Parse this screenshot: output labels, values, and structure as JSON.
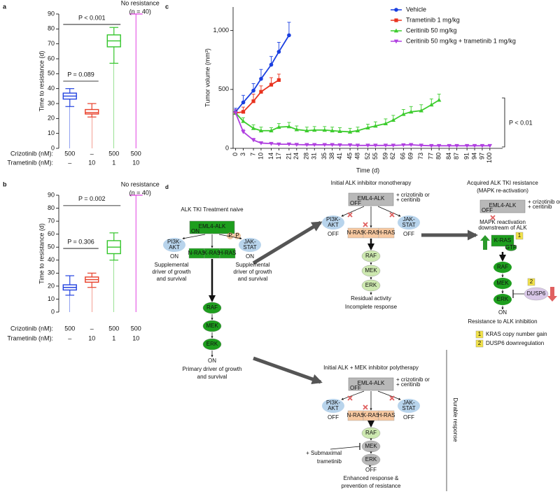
{
  "chart_data": [
    {
      "type": "box",
      "panel_label": "a",
      "y_label": "Time to resistance (d)",
      "ylim": [
        0,
        90
      ],
      "yticks": [
        0,
        10,
        20,
        30,
        40,
        50,
        60,
        70,
        80,
        90
      ],
      "category_rows": [
        {
          "label": "Crizotinib (nM):",
          "values": [
            "500",
            "–",
            "500",
            "500"
          ]
        },
        {
          "label": "Trametinib (nM):",
          "values": [
            "–",
            "10",
            "1",
            "10"
          ]
        }
      ],
      "groups": [
        {
          "color": "#2343e0",
          "min": 28,
          "q1": 33,
          "median": 35,
          "q3": 37,
          "max": 40
        },
        {
          "color": "#e8402a",
          "min": 21,
          "q1": 23,
          "median": 24,
          "q3": 26,
          "max": 30
        },
        {
          "color": "#33c52a",
          "min": 57,
          "q1": 68,
          "median": 72,
          "q3": 76,
          "max": 81
        },
        {
          "color": "#e040e0",
          "value": 90
        }
      ],
      "annotations": [
        {
          "text": "P < 0.001",
          "from": 0,
          "to": 2,
          "y": 83
        },
        {
          "text": "P = 0.089",
          "from": 0,
          "to": 1,
          "y": 45
        }
      ],
      "no_resistance_label": [
        "No resistance",
        "(n = 40)"
      ]
    },
    {
      "type": "box",
      "panel_label": "b",
      "y_label": "Time to resistance (d)",
      "ylim": [
        0,
        90
      ],
      "yticks": [
        0,
        10,
        20,
        30,
        40,
        50,
        60,
        70,
        80,
        90
      ],
      "category_rows": [
        {
          "label": "Crizotinib (nM):",
          "values": [
            "500",
            "–",
            "500",
            "500"
          ]
        },
        {
          "label": "Trametinib (nM):",
          "values": [
            "–",
            "10",
            "1",
            "10"
          ]
        }
      ],
      "groups": [
        {
          "color": "#2343e0",
          "min": 13,
          "q1": 17,
          "median": 19,
          "q3": 21,
          "max": 28
        },
        {
          "color": "#e8402a",
          "min": 19,
          "q1": 23,
          "median": 25,
          "q3": 27,
          "max": 30
        },
        {
          "color": "#33c52a",
          "min": 40,
          "q1": 45,
          "median": 50,
          "q3": 55,
          "max": 61
        },
        {
          "color": "#e040e0",
          "value": 90
        }
      ],
      "annotations": [
        {
          "text": "P = 0.002",
          "from": 0,
          "to": 2,
          "y": 82
        },
        {
          "text": "P = 0.306",
          "from": 0,
          "to": 1,
          "y": 49
        }
      ],
      "no_resistance_label": [
        "No resistance",
        "(n = 40)"
      ]
    },
    {
      "type": "line",
      "panel_label": "c",
      "x_label": "Time (d)",
      "y_label": "Tumor volume (mm³)",
      "xlim": [
        -1,
        105
      ],
      "xticks": [
        0,
        3,
        7,
        10,
        14,
        17,
        21,
        24,
        28,
        31,
        35,
        38,
        41,
        45,
        48,
        52,
        55,
        59,
        62,
        66,
        69,
        73,
        77,
        80,
        84,
        87,
        91,
        94,
        97,
        100
      ],
      "ylim": [
        0,
        1200
      ],
      "yticks": [
        0,
        500,
        {
          "value": 1000,
          "label": "1,000"
        }
      ],
      "series": [
        {
          "name": "Vehicle",
          "color": "#1a3fe0",
          "marker": "circle",
          "x": [
            0,
            3,
            7,
            10,
            14,
            17,
            21
          ],
          "values": [
            310,
            390,
            490,
            590,
            710,
            820,
            960
          ],
          "errors": [
            30,
            60,
            60,
            80,
            70,
            80,
            110
          ]
        },
        {
          "name": "Trametinib 1 mg/kg",
          "color": "#e8321e",
          "marker": "square",
          "x": [
            0,
            3,
            7,
            10,
            14,
            17
          ],
          "values": [
            300,
            310,
            400,
            480,
            540,
            580
          ],
          "errors": [
            30,
            40,
            60,
            50,
            60,
            50
          ]
        },
        {
          "name": "Ceritinib 50 mg/kg",
          "color": "#3dcc2e",
          "marker": "triangle-up",
          "x": [
            0,
            3,
            7,
            10,
            14,
            17,
            21,
            24,
            28,
            31,
            35,
            38,
            41,
            45,
            48,
            52,
            55,
            59,
            62,
            66,
            69,
            73,
            77,
            80
          ],
          "values": [
            300,
            230,
            170,
            150,
            150,
            180,
            185,
            160,
            150,
            155,
            155,
            150,
            145,
            140,
            150,
            175,
            190,
            210,
            240,
            290,
            310,
            320,
            370,
            410
          ],
          "errors": [
            30,
            30,
            30,
            30,
            25,
            30,
            35,
            30,
            30,
            30,
            30,
            30,
            30,
            30,
            30,
            30,
            35,
            40,
            40,
            40,
            45,
            50,
            50,
            50
          ]
        },
        {
          "name": "Ceritinib 50 mg/kg + trametinib 1 mg/kg",
          "color": "#b040e0",
          "marker": "triangle-down",
          "x": [
            0,
            3,
            7,
            10,
            14,
            17,
            21,
            24,
            28,
            31,
            35,
            38,
            41,
            45,
            48,
            52,
            55,
            59,
            62,
            66,
            69,
            73,
            77,
            80,
            84,
            87,
            91,
            94,
            97,
            100
          ],
          "values": [
            300,
            140,
            70,
            45,
            40,
            35,
            35,
            32,
            30,
            30,
            30,
            30,
            28,
            28,
            25,
            25,
            25,
            25,
            25,
            28,
            30,
            25,
            22,
            22,
            22,
            22,
            22,
            22,
            22,
            22
          ],
          "errors": [
            30,
            20,
            15,
            10,
            10,
            8,
            8,
            8,
            8,
            8,
            8,
            8,
            8,
            8,
            8,
            8,
            8,
            8,
            8,
            8,
            10,
            8,
            8,
            8,
            8,
            8,
            8,
            8,
            8,
            8
          ]
        }
      ],
      "annotation": "P < 0.01"
    }
  ],
  "diagram": {
    "panel_label": "d",
    "naive": {
      "title": "ALK TKI Treatment naive",
      "alk": "EML4-ALK",
      "alk_state": "ON",
      "phospho": [
        "P",
        "P"
      ],
      "left": {
        "label": [
          "PI3K-",
          "AKT"
        ],
        "state": "ON",
        "state_color": "#2a9a2a",
        "note": [
          "Supplemental",
          "driver of growth",
          "and survival"
        ]
      },
      "right": {
        "label": [
          "JAK-",
          "STAT"
        ],
        "state": "ON",
        "state_color": "#2a9a2a",
        "note": [
          "Supplemental",
          "driver of growth",
          "and survival"
        ]
      },
      "ras": [
        "N-RAS",
        "K-RAS",
        "H-RAS"
      ],
      "cascade": [
        "RAF",
        "MEK",
        "ERK"
      ],
      "outcome_state": "ON",
      "outcome_color": "#2a9a2a",
      "outcome": [
        "Primary driver of growth",
        "and survival"
      ]
    },
    "mono": {
      "title": "Initial ALK inhibitor monotherapy",
      "alk": "EML4-ALK",
      "alk_state": "OFF",
      "drugs": [
        "+ crizotinib or",
        "+ ceritinib"
      ],
      "left": {
        "label": [
          "PI3K-",
          "AKT"
        ],
        "state": "OFF",
        "state_color": "#d04040"
      },
      "right": {
        "label": [
          "JAK-",
          "STAT"
        ],
        "state": "OFF",
        "state_color": "#d04040"
      },
      "ras": [
        "N-RAS",
        "K-RAS",
        "H-RAS"
      ],
      "cascade": [
        "RAF",
        "MEK",
        "ERK"
      ],
      "outcome_state": "Residual activity",
      "outcome_color": "#f0a040",
      "outcome": [
        "Incomplete response"
      ]
    },
    "acquired": {
      "title": [
        "Acquired ALK TKI resistance",
        "(MAPK re-activation)"
      ],
      "alk": "EML4-ALK",
      "alk_state": "OFF",
      "drugs": [
        "+ crizotinib or",
        "+ ceritinib"
      ],
      "note": [
        "MAPK reactivation",
        "downstream of ALK"
      ],
      "kras": "K-RAS",
      "gtp": "GTP",
      "cascade": [
        "RAF",
        "MEK",
        "ERK"
      ],
      "dusp6": "DUSP6",
      "outcome_state": "ON",
      "outcome_color": "#2a9a2a",
      "outcome": [
        "Resistance to ALK inhibition"
      ],
      "key": [
        {
          "marker": "1",
          "text": "KRAS copy number gain"
        },
        {
          "marker": "2",
          "text": "DUSP6 downregulation"
        }
      ]
    },
    "poly": {
      "title": "Initial ALK + MEK inhibitor polytherapy",
      "alk": "EML4-ALK",
      "alk_state": "OFF",
      "drugs": [
        "+ crizotinib or",
        "+ ceritinib"
      ],
      "left": {
        "label": [
          "PI3K-",
          "AKT"
        ],
        "state": "OFF",
        "state_color": "#d04040"
      },
      "right": {
        "label": [
          "JAK-",
          "STAT"
        ],
        "state": "OFF",
        "state_color": "#d04040"
      },
      "ras": [
        "N-RAS",
        "K-RAS",
        "H-RAS"
      ],
      "cascade": [
        "RAF",
        "MEK",
        "ERK"
      ],
      "inhibitor": [
        "+ Submaximal",
        "trametinib"
      ],
      "outcome_state": "OFF",
      "outcome_color": "#d04040",
      "outcome": [
        "Enhanced response &",
        "prevention of resistance"
      ]
    },
    "bracket_label": "Durable response"
  }
}
